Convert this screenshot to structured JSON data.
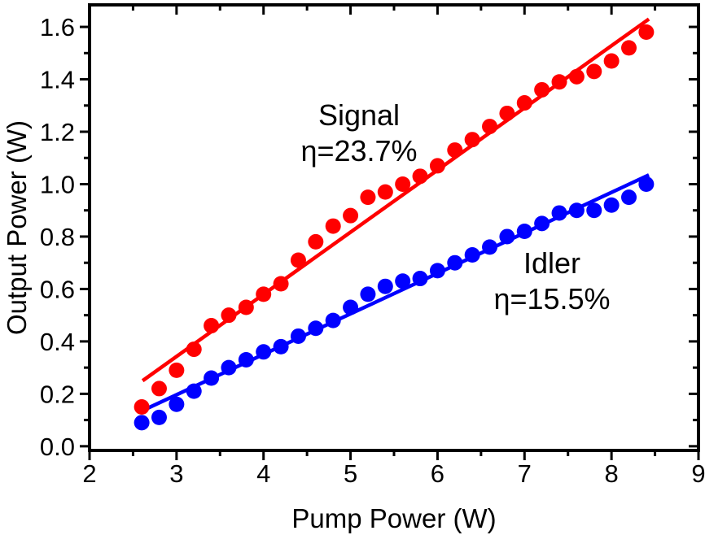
{
  "figure": {
    "background_color": "#ffffff",
    "frame_color": "#000000"
  },
  "chart_data": {
    "type": "scatter",
    "title": "",
    "xlabel": "Pump Power (W)",
    "ylabel": "Output Power (W)",
    "xlim": [
      2,
      9
    ],
    "ylim": [
      -0.016,
      1.684
    ],
    "grid": false,
    "legend_position": "in-plot text annotations",
    "x_ticks": {
      "values": [
        2,
        3,
        4,
        5,
        6,
        7,
        8,
        9
      ],
      "labels": [
        "2",
        "3",
        "4",
        "5",
        "6",
        "7",
        "8",
        "9"
      ],
      "minor": [
        2.5,
        3.5,
        4.5,
        5.5,
        6.5,
        7.5,
        8.5
      ]
    },
    "y_ticks": {
      "values": [
        0.0,
        0.2,
        0.4,
        0.6,
        0.8,
        1.0,
        1.2,
        1.4,
        1.6
      ],
      "labels": [
        "0.0",
        "0.2",
        "0.4",
        "0.6",
        "0.8",
        "1.0",
        "1.2",
        "1.4",
        "1.6"
      ],
      "minor": [
        0.1,
        0.3,
        0.5,
        0.7,
        0.9,
        1.1,
        1.3,
        1.5
      ]
    },
    "x": [
      2.6,
      2.8,
      3.0,
      3.2,
      3.4,
      3.6,
      3.8,
      4.0,
      4.2,
      4.4,
      4.6,
      4.8,
      5.0,
      5.2,
      5.4,
      5.6,
      5.8,
      6.0,
      6.2,
      6.4,
      6.6,
      6.8,
      7.0,
      7.2,
      7.4,
      7.6,
      7.8,
      8.0,
      8.2,
      8.4
    ],
    "series": [
      {
        "name": "Signal",
        "color": "#ff0000",
        "marker": "circle",
        "values": [
          0.15,
          0.22,
          0.29,
          0.37,
          0.46,
          0.5,
          0.53,
          0.58,
          0.62,
          0.71,
          0.78,
          0.84,
          0.88,
          0.95,
          0.97,
          1.0,
          1.03,
          1.07,
          1.13,
          1.17,
          1.22,
          1.27,
          1.31,
          1.36,
          1.39,
          1.41,
          1.43,
          1.47,
          1.52,
          1.58
        ],
        "fit_line": {
          "x1": 2.61,
          "y1": 0.25,
          "x2": 8.43,
          "y2": 1.63,
          "slope_pct": "23.7%"
        }
      },
      {
        "name": "Idler",
        "color": "#0000ff",
        "marker": "circle",
        "values": [
          0.09,
          0.11,
          0.16,
          0.21,
          0.26,
          0.3,
          0.33,
          0.36,
          0.38,
          0.42,
          0.45,
          0.48,
          0.53,
          0.58,
          0.61,
          0.63,
          0.64,
          0.67,
          0.7,
          0.73,
          0.76,
          0.8,
          0.82,
          0.85,
          0.89,
          0.9,
          0.9,
          0.92,
          0.95,
          1.0
        ],
        "fit_line": {
          "x1": 2.57,
          "y1": 0.13,
          "x2": 8.43,
          "y2": 1.035,
          "slope_pct": "15.5%"
        }
      }
    ]
  },
  "annotations": [
    {
      "id": "signal-label",
      "lines": [
        "Signal",
        "η=23.7%"
      ],
      "color": "#000000"
    },
    {
      "id": "idler-label",
      "lines": [
        "Idler",
        "η=15.5%"
      ],
      "color": "#000000"
    }
  ]
}
